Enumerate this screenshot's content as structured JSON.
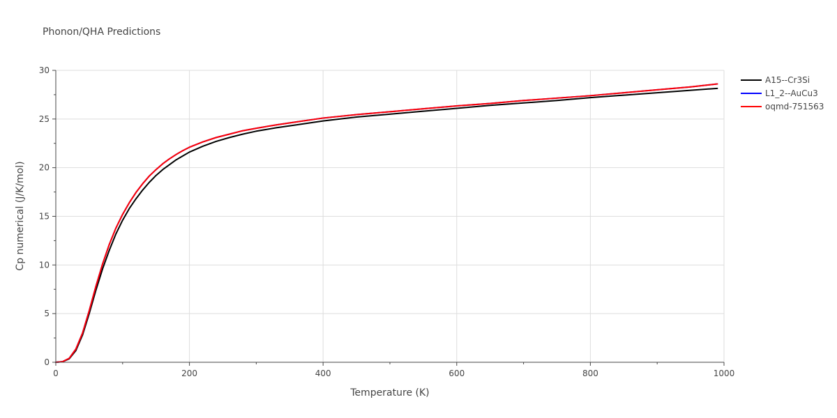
{
  "chart_data": {
    "type": "line",
    "title": "Phonon/QHA Predictions",
    "xlabel": "Temperature (K)",
    "ylabel": "Cp numerical (J/K/mol)",
    "xlim": [
      0,
      1000
    ],
    "ylim": [
      0,
      30
    ],
    "xticks": [
      0,
      200,
      400,
      600,
      800,
      1000
    ],
    "yticks": [
      0,
      5,
      10,
      15,
      20,
      25,
      30
    ],
    "grid": true,
    "legend": "top-right",
    "x": [
      0,
      10,
      20,
      30,
      40,
      50,
      60,
      70,
      80,
      90,
      100,
      110,
      120,
      130,
      140,
      150,
      160,
      170,
      180,
      190,
      200,
      220,
      240,
      260,
      280,
      300,
      330,
      360,
      400,
      450,
      500,
      550,
      600,
      650,
      700,
      750,
      800,
      850,
      900,
      950,
      990
    ],
    "series": [
      {
        "name": "A15--Cr3Si",
        "color": "#000000",
        "values": [
          0,
          0.05,
          0.35,
          1.2,
          2.8,
          5.0,
          7.4,
          9.6,
          11.5,
          13.2,
          14.6,
          15.8,
          16.8,
          17.7,
          18.5,
          19.2,
          19.8,
          20.3,
          20.8,
          21.2,
          21.6,
          22.2,
          22.7,
          23.1,
          23.45,
          23.75,
          24.1,
          24.4,
          24.8,
          25.2,
          25.5,
          25.8,
          26.1,
          26.4,
          26.65,
          26.9,
          27.2,
          27.45,
          27.7,
          27.95,
          28.15
        ]
      },
      {
        "name": "L1_2--AuCu3",
        "color": "#0000ff",
        "values": [
          0,
          0.06,
          0.4,
          1.35,
          3.0,
          5.3,
          7.8,
          10.1,
          12.1,
          13.8,
          15.2,
          16.4,
          17.45,
          18.35,
          19.15,
          19.8,
          20.4,
          20.9,
          21.35,
          21.75,
          22.1,
          22.65,
          23.1,
          23.45,
          23.8,
          24.05,
          24.4,
          24.7,
          25.1,
          25.45,
          25.75,
          26.05,
          26.35,
          26.6,
          26.9,
          27.15,
          27.4,
          27.7,
          28.0,
          28.3,
          28.6
        ]
      },
      {
        "name": "oqmd-751563",
        "color": "#ff0000",
        "values": [
          0,
          0.06,
          0.4,
          1.35,
          3.0,
          5.3,
          7.8,
          10.1,
          12.1,
          13.8,
          15.2,
          16.4,
          17.45,
          18.35,
          19.15,
          19.8,
          20.4,
          20.9,
          21.35,
          21.75,
          22.1,
          22.65,
          23.1,
          23.45,
          23.8,
          24.05,
          24.4,
          24.7,
          25.1,
          25.45,
          25.75,
          26.05,
          26.35,
          26.6,
          26.9,
          27.15,
          27.4,
          27.7,
          28.0,
          28.3,
          28.6
        ]
      }
    ]
  }
}
